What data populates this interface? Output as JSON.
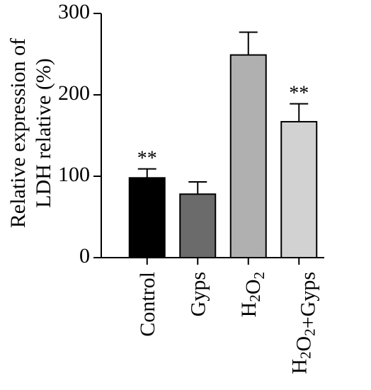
{
  "chart_data": {
    "type": "bar",
    "title": "",
    "xlabel": "",
    "ylabel_lines": [
      "Relative expression of",
      "LDH relative (%)"
    ],
    "ylim": [
      0,
      300
    ],
    "yticks": [
      0,
      100,
      200,
      300
    ],
    "categories": [
      {
        "label": "Control",
        "sub": ""
      },
      {
        "label": "Gyps",
        "sub": ""
      },
      {
        "label": "H2O2",
        "sub": "H2O2"
      },
      {
        "label": "H2O2+Gyps",
        "sub": "H2O2"
      }
    ],
    "values": [
      98,
      78,
      249,
      167
    ],
    "errors": [
      11,
      15,
      28,
      22
    ],
    "significance": [
      "**",
      "",
      "",
      "**"
    ],
    "colors": [
      "#000000",
      "#6b6b6b",
      "#b0b0b0",
      "#d2d2d2"
    ]
  }
}
